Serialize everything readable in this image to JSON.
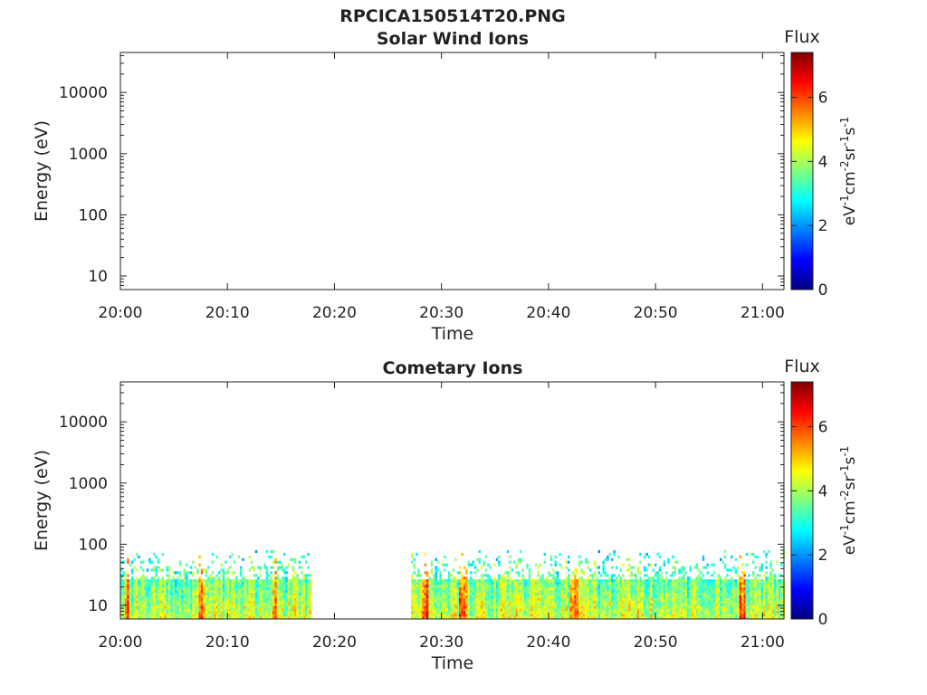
{
  "figure": {
    "title": "RPCICA150514T20.PNG"
  },
  "chart_data": [
    {
      "type": "heatmap",
      "title": "Solar Wind Ions",
      "xlabel": "Time",
      "ylabel": "Energy (eV)",
      "y_scale": "log",
      "xlim": [
        "20:00",
        "21:02"
      ],
      "ylim": [
        6,
        45000
      ],
      "x_ticks": [
        "20:00",
        "20:10",
        "20:20",
        "20:30",
        "20:40",
        "20:50",
        "21:00"
      ],
      "y_ticks": [
        10,
        100,
        1000,
        10000
      ],
      "y_tick_labels": [
        "10",
        "100",
        "1000",
        "10000"
      ],
      "colorbar": {
        "label": "Flux",
        "units": "eV-1cm-2sr-1s-1",
        "range": [
          0,
          7.4
        ],
        "ticks": [
          "0",
          "2",
          "4",
          "6"
        ],
        "colormap": "jet"
      },
      "grid": false,
      "data_segments": []
    },
    {
      "type": "heatmap",
      "title": "Cometary Ions",
      "xlabel": "Time",
      "ylabel": "Energy (eV)",
      "y_scale": "log",
      "xlim": [
        "20:00",
        "21:02"
      ],
      "ylim": [
        6,
        45000
      ],
      "x_ticks": [
        "20:00",
        "20:10",
        "20:20",
        "20:30",
        "20:40",
        "20:50",
        "21:00"
      ],
      "y_ticks": [
        10,
        100,
        1000,
        10000
      ],
      "y_tick_labels": [
        "10",
        "100",
        "1000",
        "10000"
      ],
      "colorbar": {
        "label": "Flux",
        "units": "eV-1cm-2sr-1s-1",
        "range": [
          0,
          7.4
        ],
        "ticks": [
          "0",
          "2",
          "4",
          "6"
        ],
        "colormap": "jet"
      },
      "grid": false,
      "data_segments": [
        {
          "start": "20:00",
          "end": "20:17:45",
          "energy_range_eV": [
            6,
            80
          ],
          "typical_flux": 4.2,
          "peak_flux": 6.5
        },
        {
          "start": "20:27:10",
          "end": "21:02",
          "energy_range_eV": [
            6,
            80
          ],
          "typical_flux": 4.3,
          "peak_flux": 6.8
        }
      ]
    }
  ]
}
